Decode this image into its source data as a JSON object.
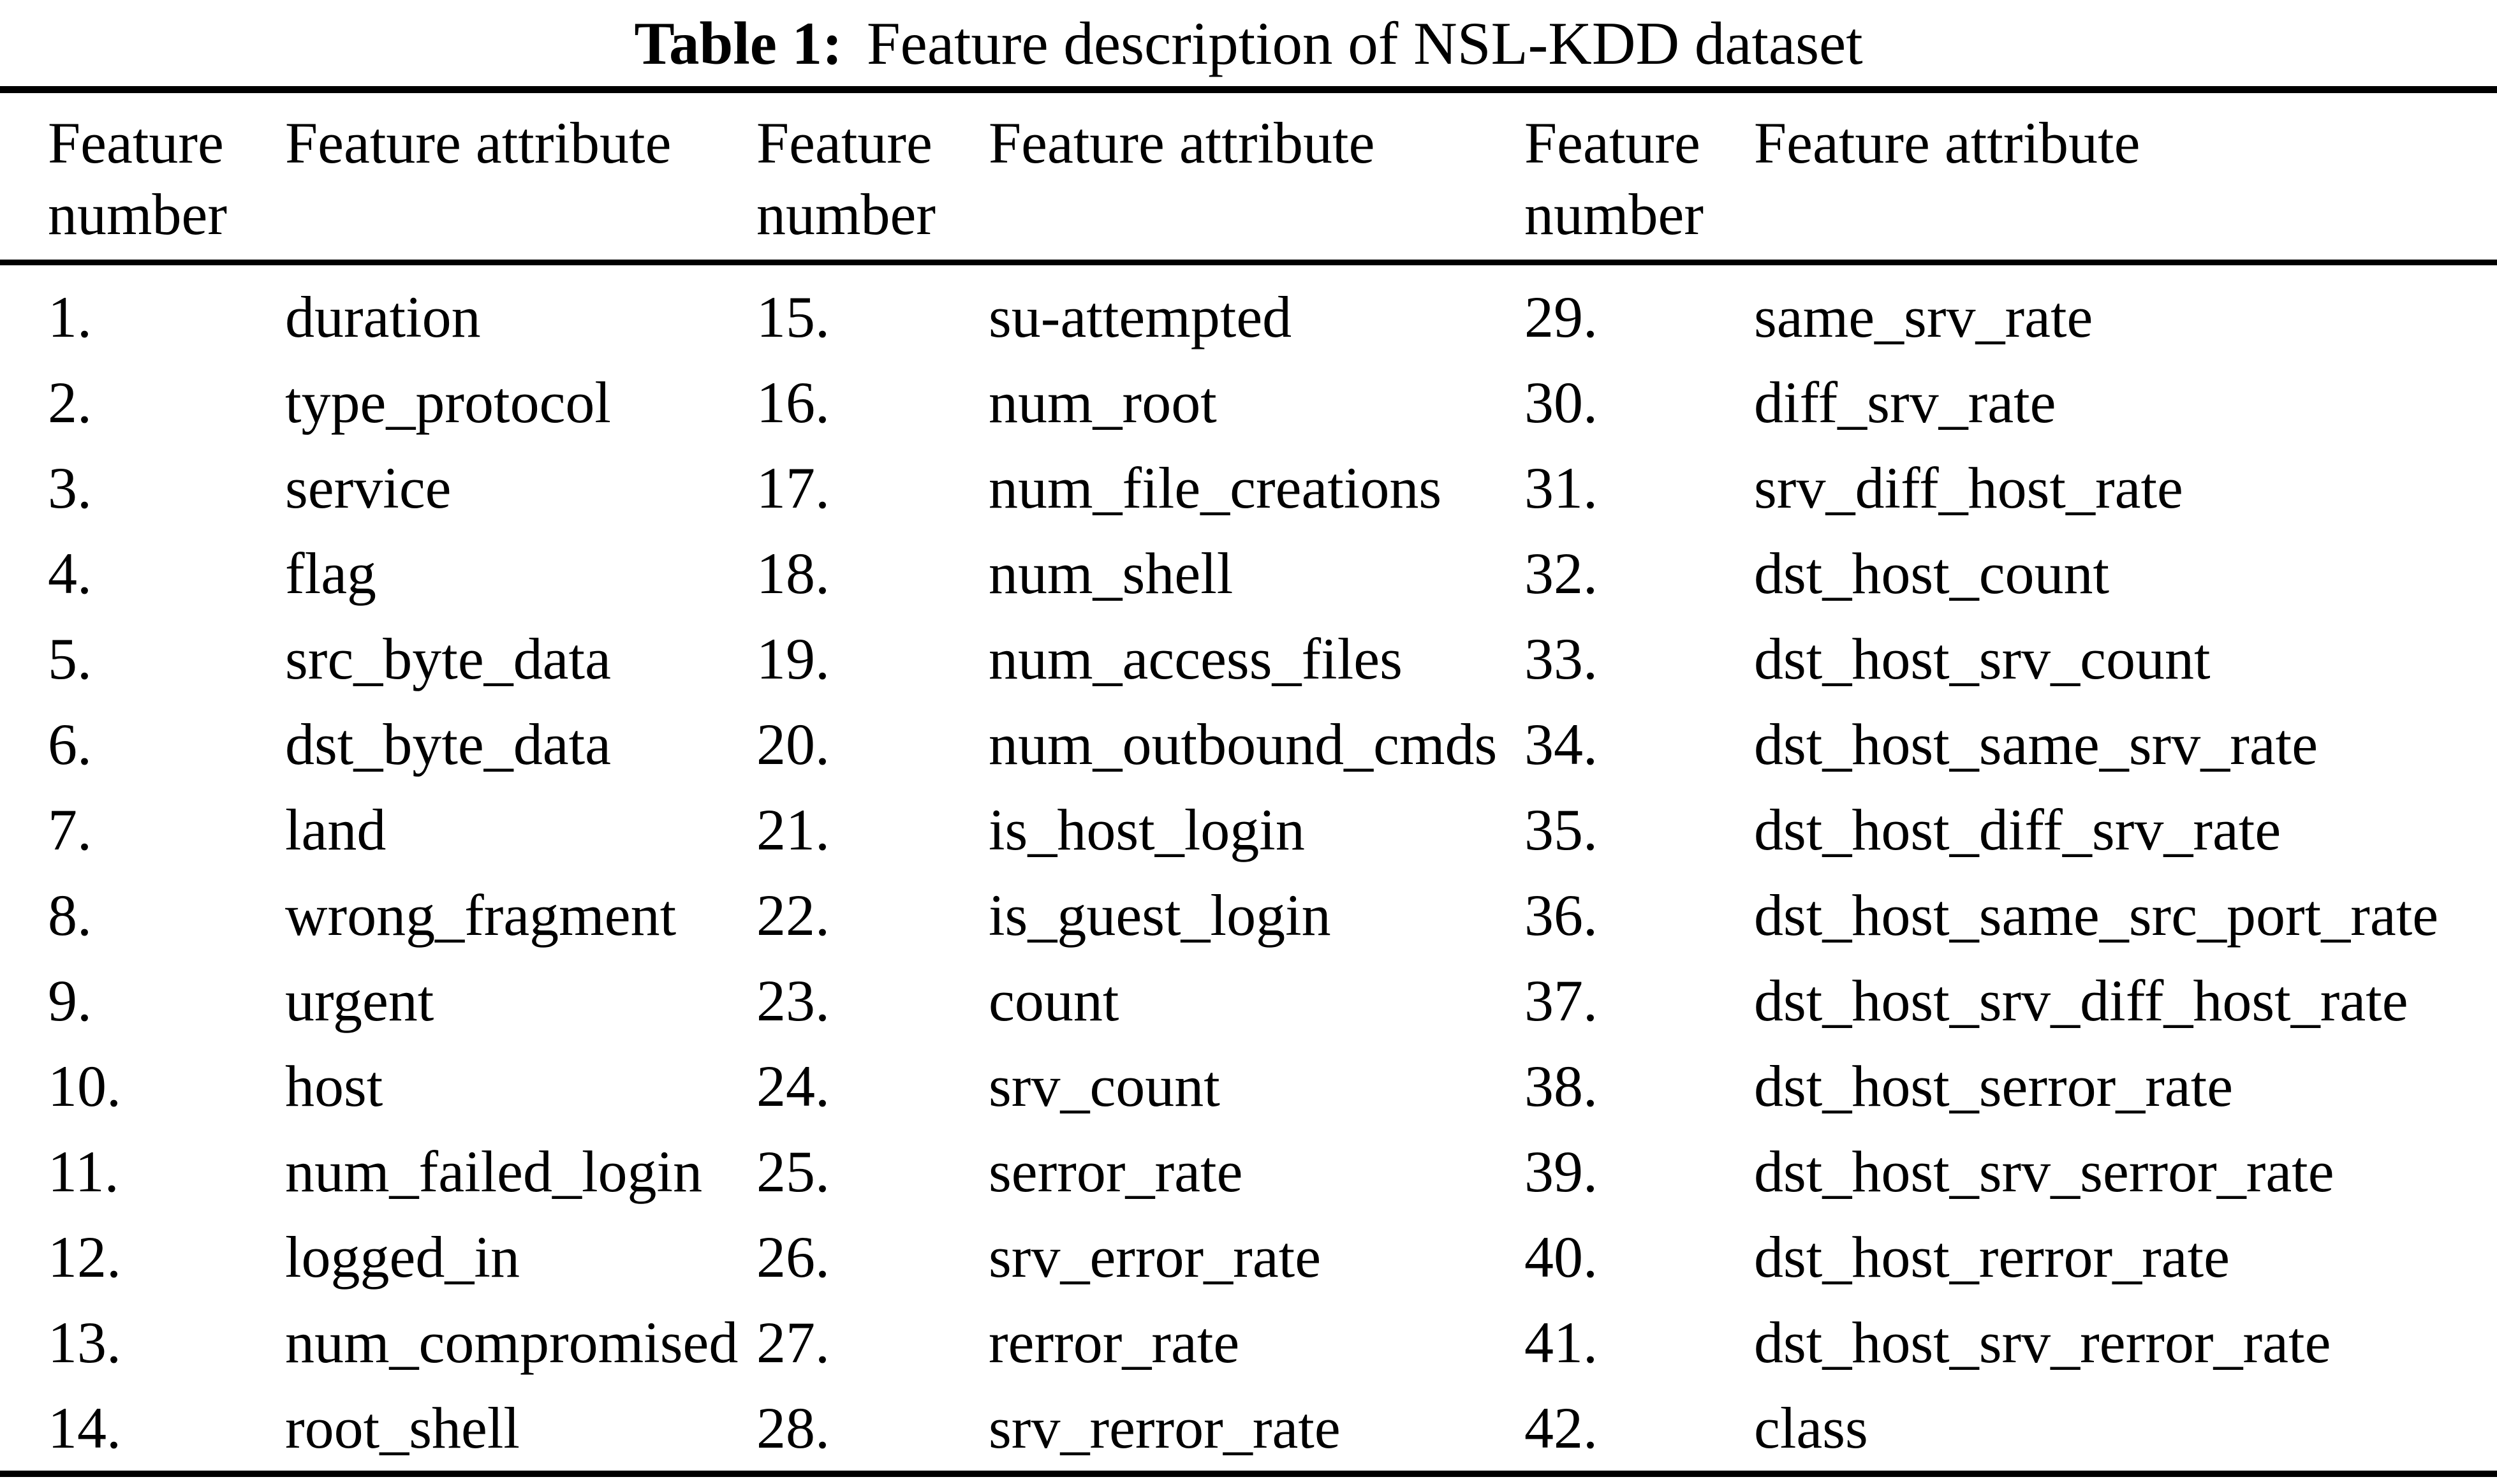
{
  "page": {
    "background_color": "#ffffff",
    "text_color": "#000000"
  },
  "caption": {
    "label": "Table 1:",
    "text": "Feature description of NSL-KDD dataset"
  },
  "headers": {
    "number": "Feature number",
    "attribute": "Feature attribute"
  },
  "columns": [
    {
      "rows": [
        {
          "number": "1.",
          "attribute": "duration"
        },
        {
          "number": "2.",
          "attribute": "type_protocol"
        },
        {
          "number": "3.",
          "attribute": "service"
        },
        {
          "number": "4.",
          "attribute": "flag"
        },
        {
          "number": "5.",
          "attribute": "src_byte_data"
        },
        {
          "number": "6.",
          "attribute": "dst_byte_data"
        },
        {
          "number": "7.",
          "attribute": "land"
        },
        {
          "number": "8.",
          "attribute": "wrong_fragment"
        },
        {
          "number": "9.",
          "attribute": "urgent"
        },
        {
          "number": "10.",
          "attribute": "host"
        },
        {
          "number": "11.",
          "attribute": "num_failed_login"
        },
        {
          "number": "12.",
          "attribute": "logged_in"
        },
        {
          "number": "13.",
          "attribute": "num_compromised"
        },
        {
          "number": "14.",
          "attribute": "root_shell"
        }
      ]
    },
    {
      "rows": [
        {
          "number": "15.",
          "attribute": "su-attempted"
        },
        {
          "number": "16.",
          "attribute": "num_root"
        },
        {
          "number": "17.",
          "attribute": "num_file_creations"
        },
        {
          "number": "18.",
          "attribute": "num_shell"
        },
        {
          "number": "19.",
          "attribute": "num_access_files"
        },
        {
          "number": "20.",
          "attribute": "num_outbound_cmds"
        },
        {
          "number": "21.",
          "attribute": "is_host_login"
        },
        {
          "number": "22.",
          "attribute": "is_guest_login"
        },
        {
          "number": "23.",
          "attribute": "count"
        },
        {
          "number": "24.",
          "attribute": "srv_count"
        },
        {
          "number": "25.",
          "attribute": "serror_rate"
        },
        {
          "number": "26.",
          "attribute": "srv_error_rate"
        },
        {
          "number": "27.",
          "attribute": "rerror_rate"
        },
        {
          "number": "28.",
          "attribute": "srv_rerror_rate"
        }
      ]
    },
    {
      "rows": [
        {
          "number": "29.",
          "attribute": "same_srv_rate"
        },
        {
          "number": "30.",
          "attribute": "diff_srv_rate"
        },
        {
          "number": "31.",
          "attribute": "srv_diff_host_rate"
        },
        {
          "number": "32.",
          "attribute": "dst_host_count"
        },
        {
          "number": "33.",
          "attribute": "dst_host_srv_count"
        },
        {
          "number": "34.",
          "attribute": "dst_host_same_srv_rate"
        },
        {
          "number": "35.",
          "attribute": "dst_host_diff_srv_rate"
        },
        {
          "number": "36.",
          "attribute": "dst_host_same_src_port_rate"
        },
        {
          "number": "37.",
          "attribute": "dst_host_srv_diff_host_rate"
        },
        {
          "number": "38.",
          "attribute": "dst_host_serror_rate"
        },
        {
          "number": "39.",
          "attribute": "dst_host_srv_serror_rate"
        },
        {
          "number": "40.",
          "attribute": "dst_host_rerror_rate"
        },
        {
          "number": "41.",
          "attribute": "dst_host_srv_rerror_rate"
        },
        {
          "number": "42.",
          "attribute": "class"
        }
      ]
    }
  ]
}
